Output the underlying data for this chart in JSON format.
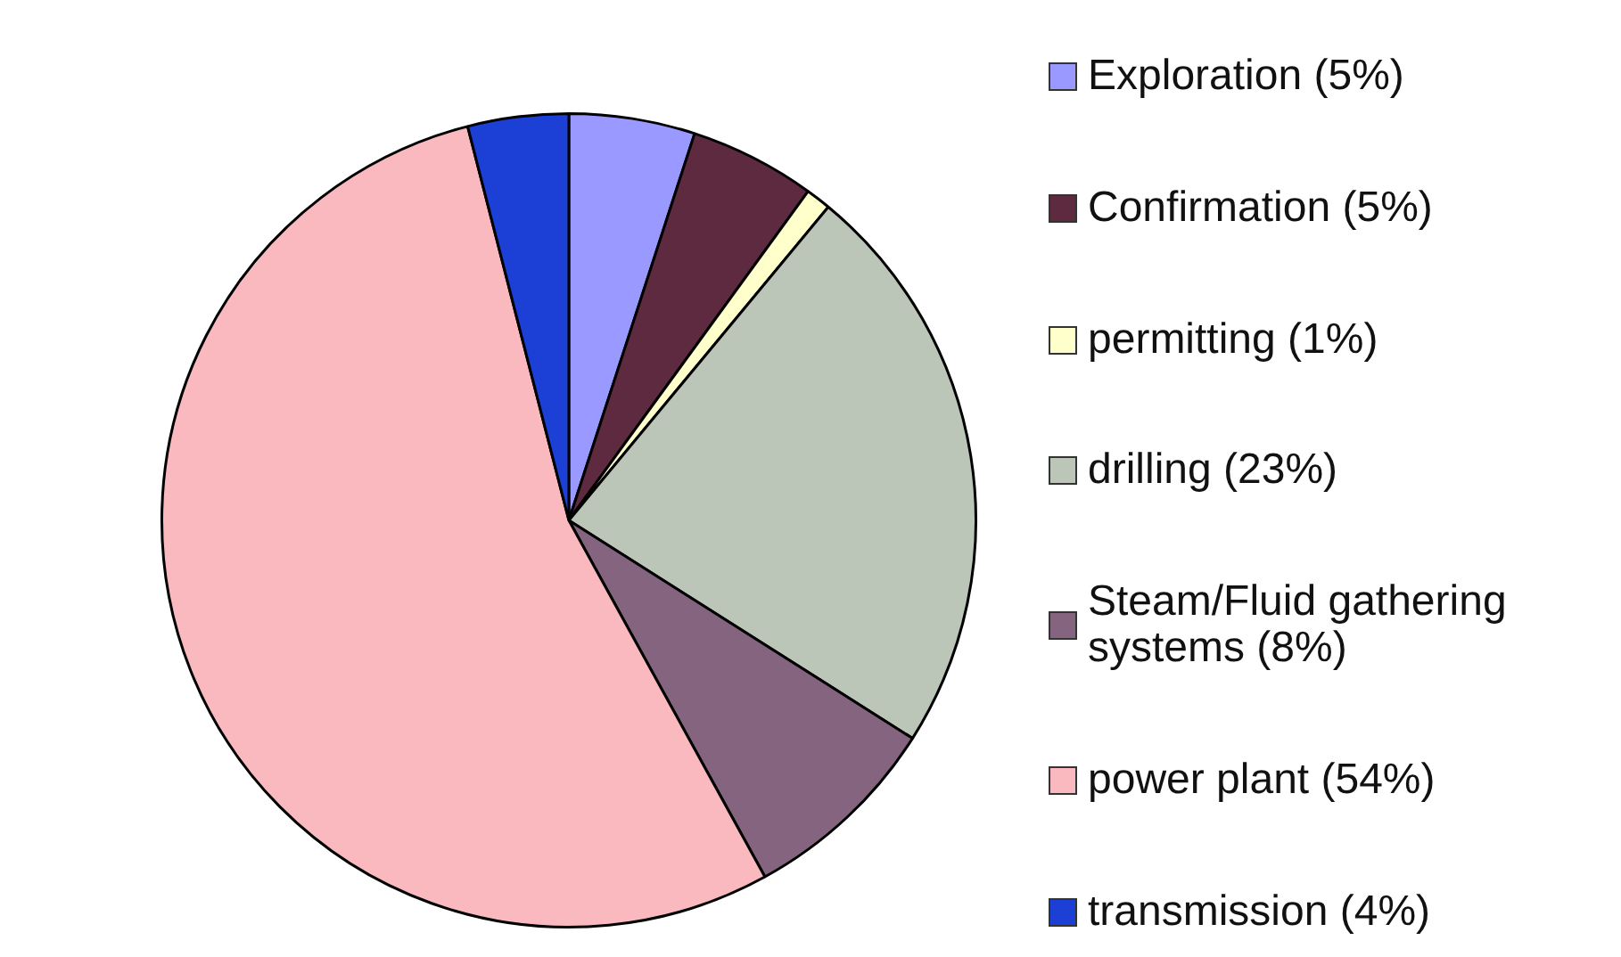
{
  "chart_data": {
    "type": "pie",
    "categories": [
      "Exploration (5%)",
      "Confirmation (5%)",
      "permitting (1%)",
      "drilling (23%)",
      "Steam/Fluid gathering systems (8%)",
      "power plant (54%)",
      "transmission (4%)"
    ],
    "values": [
      5,
      5,
      1,
      23,
      8,
      54,
      4
    ],
    "colors": [
      "#9999ff",
      "#5e2a40",
      "#ffffcc",
      "#bcc6b8",
      "#84647f",
      "#f9b9bf",
      "#1c3fd6"
    ],
    "legend": "right"
  }
}
